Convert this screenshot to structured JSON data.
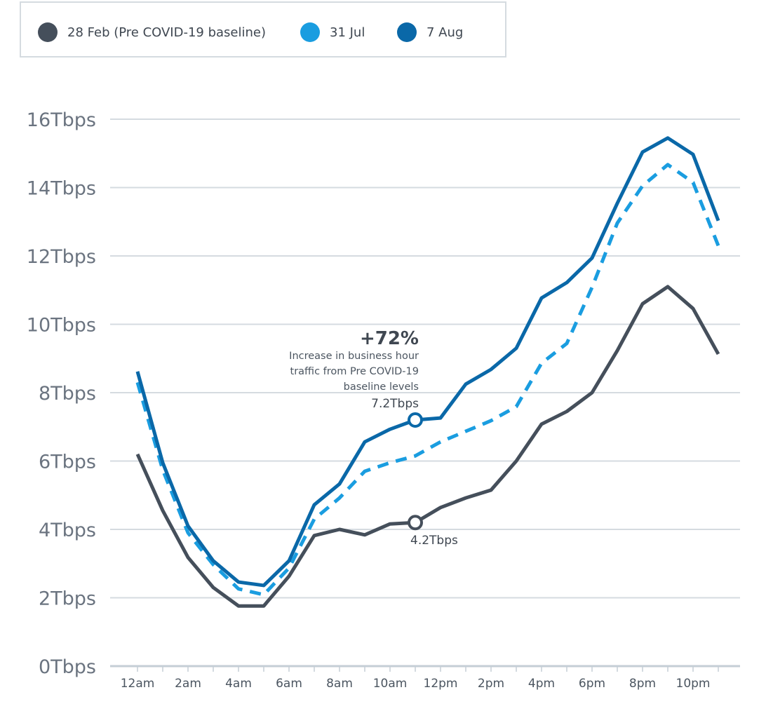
{
  "chart_data": {
    "type": "line",
    "x": [
      "12am",
      "1am",
      "2am",
      "3am",
      "4am",
      "5am",
      "6am",
      "7am",
      "8am",
      "9am",
      "10am",
      "11am",
      "12pm",
      "1pm",
      "2pm",
      "3pm",
      "4pm",
      "5pm",
      "6pm",
      "7pm",
      "8pm",
      "9pm",
      "10pm",
      "11pm"
    ],
    "x_tick_labels": [
      "12am",
      "2am",
      "4am",
      "6am",
      "8am",
      "10am",
      "12pm",
      "2pm",
      "4pm",
      "6pm",
      "8pm",
      "10pm"
    ],
    "y_tick_labels": [
      "0Tbps",
      "2Tbps",
      "4Tbps",
      "6Tbps",
      "8Tbps",
      "10Tbps",
      "12Tbps",
      "14Tbps",
      "16Tbps"
    ],
    "ylim": [
      0,
      16
    ],
    "grid": "horizontal",
    "legend_position": "top-left",
    "series": [
      {
        "name": "28 Feb (Pre COVID-19 baseline)",
        "color": "#454f5b",
        "style": "solid",
        "values": [
          6.2,
          4.55,
          3.18,
          2.3,
          1.76,
          1.76,
          2.63,
          3.82,
          4.0,
          3.84,
          4.16,
          4.2,
          4.64,
          4.92,
          5.15,
          6.0,
          7.08,
          7.45,
          8.0,
          9.23,
          10.6,
          11.1,
          10.46,
          9.13
        ]
      },
      {
        "name": "31 Jul",
        "color": "#1a9de0",
        "style": "dashed",
        "values": [
          8.3,
          5.74,
          3.9,
          2.97,
          2.26,
          2.09,
          2.87,
          4.3,
          4.92,
          5.7,
          5.95,
          6.15,
          6.56,
          6.87,
          7.18,
          7.59,
          8.86,
          9.44,
          11.08,
          12.96,
          14.05,
          14.67,
          14.15,
          12.3
        ]
      },
      {
        "name": "7 Aug",
        "color": "#0a68a8",
        "style": "solid",
        "values": [
          8.62,
          5.95,
          4.1,
          3.08,
          2.46,
          2.36,
          3.08,
          4.72,
          5.33,
          6.56,
          6.93,
          7.2,
          7.26,
          8.25,
          8.68,
          9.3,
          10.77,
          11.22,
          11.94,
          13.54,
          15.04,
          15.45,
          14.97,
          13.03
        ]
      }
    ],
    "annotations": {
      "headline": "+72%",
      "text": [
        "Increase in business hour",
        "traffic from Pre COVID-19",
        "baseline levels"
      ],
      "high_label": "7.2Tbps",
      "low_label": "4.2Tbps",
      "at_hour": "11am"
    }
  }
}
